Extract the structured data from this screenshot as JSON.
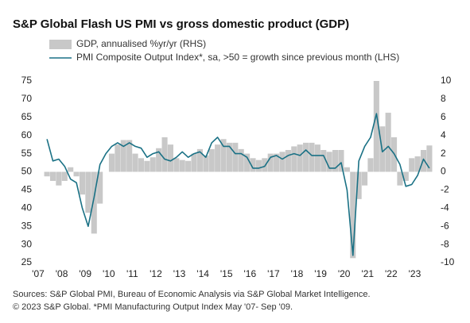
{
  "chart_data": {
    "type": "combo",
    "title": "S&P Global Flash US PMI vs gross domestic product (GDP)",
    "x": [
      2007.375,
      2007.625,
      2007.875,
      2008.125,
      2008.375,
      2008.625,
      2008.875,
      2009.125,
      2009.375,
      2009.625,
      2009.875,
      2010.125,
      2010.375,
      2010.625,
      2010.875,
      2011.125,
      2011.375,
      2011.625,
      2011.875,
      2012.125,
      2012.375,
      2012.625,
      2012.875,
      2013.125,
      2013.375,
      2013.625,
      2013.875,
      2014.125,
      2014.375,
      2014.625,
      2014.875,
      2015.125,
      2015.375,
      2015.625,
      2015.875,
      2016.125,
      2016.375,
      2016.625,
      2016.875,
      2017.125,
      2017.375,
      2017.625,
      2017.875,
      2018.125,
      2018.375,
      2018.625,
      2018.875,
      2019.125,
      2019.375,
      2019.625,
      2019.875,
      2020.125,
      2020.375,
      2020.625,
      2020.875,
      2021.125,
      2021.375,
      2021.625,
      2021.875,
      2022.125,
      2022.375,
      2022.625,
      2022.875,
      2023.125,
      2023.375,
      2023.625
    ],
    "series": [
      {
        "name": "GDP, annualised %yr/yr (RHS)",
        "type": "bar",
        "axis": "y2",
        "color": "#c8c8c8",
        "values": [
          -0.5,
          -1,
          -1.5,
          -1,
          0.5,
          -0.5,
          -2.5,
          -4.5,
          -6.8,
          -3.5,
          0,
          2,
          3,
          3.5,
          3.5,
          2,
          1.5,
          1.2,
          1.6,
          2.6,
          3.8,
          3,
          1.5,
          1.3,
          1.2,
          2,
          2.5,
          1.8,
          2.5,
          3,
          3.6,
          3.2,
          3.2,
          2.5,
          2,
          1.5,
          1.3,
          1.5,
          2,
          2,
          2.2,
          2.4,
          2.8,
          3,
          3.2,
          3.2,
          3,
          2.4,
          2.2,
          2.4,
          2.4,
          0.5,
          -9.5,
          -3,
          -1.5,
          1.5,
          10,
          5,
          6.5,
          3.8,
          -1.5,
          -1,
          1.5,
          1.7,
          2.4,
          2.9
        ]
      },
      {
        "name": "PMI Composite Output Index*, sa, >50 = growth since previous month (LHS)",
        "type": "line",
        "color": "#1a7185",
        "values": [
          59,
          53,
          53.5,
          51.5,
          48,
          47,
          40,
          35,
          43,
          52,
          55,
          57,
          58,
          57,
          58,
          57,
          56.5,
          54,
          55,
          55.5,
          53.5,
          53,
          54,
          55.5,
          54,
          55,
          55.5,
          54,
          58,
          59.5,
          57,
          57,
          55,
          55,
          54,
          51,
          51,
          51.5,
          54,
          54.5,
          53.5,
          54.5,
          55,
          54.5,
          56,
          54.5,
          54.5,
          54.5,
          51,
          51,
          52.5,
          45,
          27,
          53,
          57,
          59.5,
          66,
          55.5,
          57,
          55,
          52,
          46,
          46.5,
          49,
          53.5,
          51
        ]
      }
    ],
    "xlim": [
      2007,
      2023.83
    ],
    "xticks": [
      {
        "value": 2007,
        "label": "'07"
      },
      {
        "value": 2008,
        "label": "'08"
      },
      {
        "value": 2009,
        "label": "'09"
      },
      {
        "value": 2010,
        "label": "'10"
      },
      {
        "value": 2011,
        "label": "'11"
      },
      {
        "value": 2012,
        "label": "'12"
      },
      {
        "value": 2013,
        "label": "'13"
      },
      {
        "value": 2014,
        "label": "'14"
      },
      {
        "value": 2015,
        "label": "'15"
      },
      {
        "value": 2016,
        "label": "'16"
      },
      {
        "value": 2017,
        "label": "'17"
      },
      {
        "value": 2018,
        "label": "'18"
      },
      {
        "value": 2019,
        "label": "'19"
      },
      {
        "value": 2020,
        "label": "'20"
      },
      {
        "value": 2021,
        "label": "'21"
      },
      {
        "value": 2022,
        "label": "'22"
      },
      {
        "value": 2023,
        "label": "'23"
      }
    ],
    "ylim": [
      25,
      75
    ],
    "yticks": [
      25,
      30,
      35,
      40,
      45,
      50,
      55,
      60,
      65,
      70,
      75
    ],
    "y2lim": [
      -10,
      10
    ],
    "y2ticks": [
      -10,
      -8,
      -6,
      -4,
      -2,
      0,
      2,
      4,
      6,
      8,
      10
    ],
    "notes": [
      "Sources: S&P Global PMI, Bureau of Economic Analysis via S&P Global Market Intelligence.",
      "© 2023 S&P Global.  *PMI Manufacturing Output Index May '07- Sep '09."
    ]
  }
}
